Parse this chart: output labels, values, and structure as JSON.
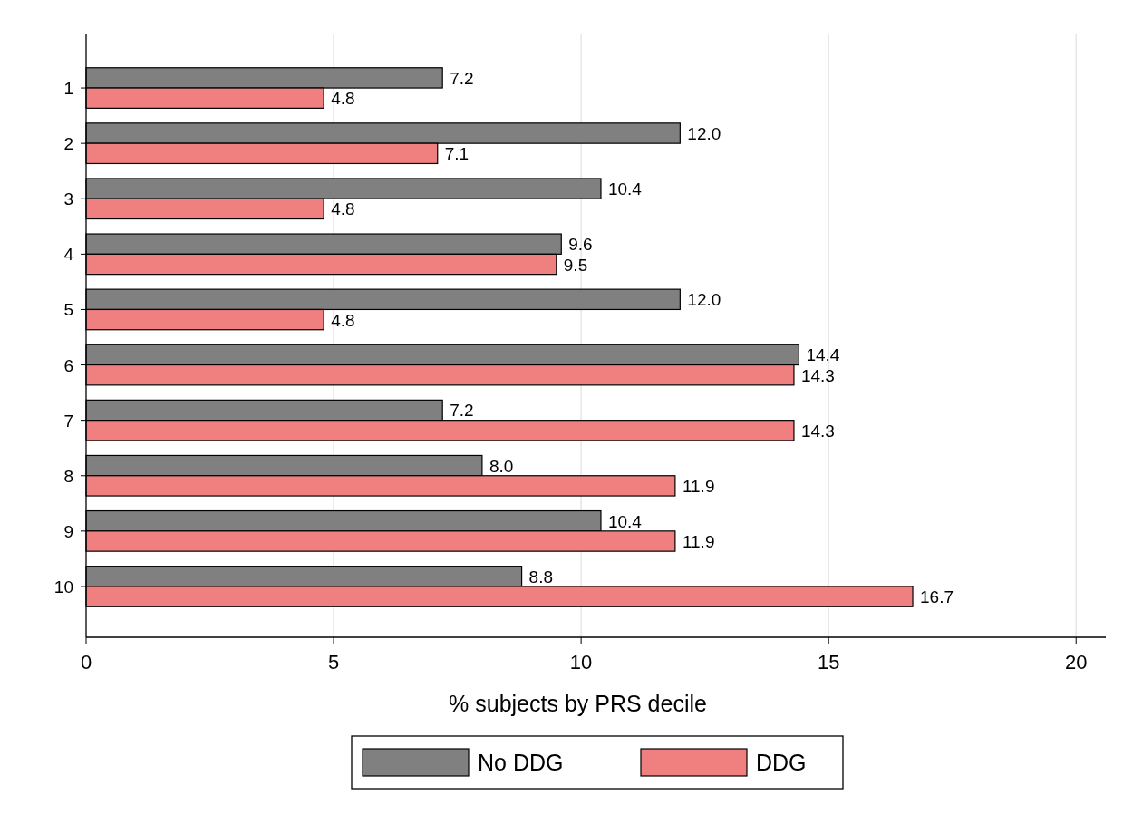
{
  "chart_data": {
    "type": "bar",
    "orientation": "horizontal",
    "xlabel": "% subjects by PRS decile",
    "categories": [
      "1",
      "2",
      "3",
      "4",
      "5",
      "6",
      "7",
      "8",
      "9",
      "10"
    ],
    "series": [
      {
        "name": "No DDG",
        "color": "#808080",
        "values": [
          7.2,
          12.0,
          10.4,
          9.6,
          12.0,
          14.4,
          7.2,
          8.0,
          10.4,
          8.8
        ],
        "value_labels": [
          "7.2",
          "12.0",
          "10.4",
          "9.6",
          "12.0",
          "14.4",
          "7.2",
          "8.0",
          "10.4",
          "8.8"
        ]
      },
      {
        "name": "DDG",
        "color": "#f08080",
        "values": [
          4.8,
          7.1,
          4.8,
          9.5,
          4.8,
          14.3,
          14.3,
          11.9,
          11.9,
          16.7
        ],
        "value_labels": [
          "4.8",
          "7.1",
          "4.8",
          "9.5",
          "4.8",
          "14.3",
          "14.3",
          "11.9",
          "11.9",
          "16.7"
        ]
      }
    ],
    "xlim": [
      0,
      20.6
    ],
    "xticks": [
      0,
      5,
      10,
      15,
      20
    ],
    "grid": "x",
    "legend": "bottom"
  }
}
